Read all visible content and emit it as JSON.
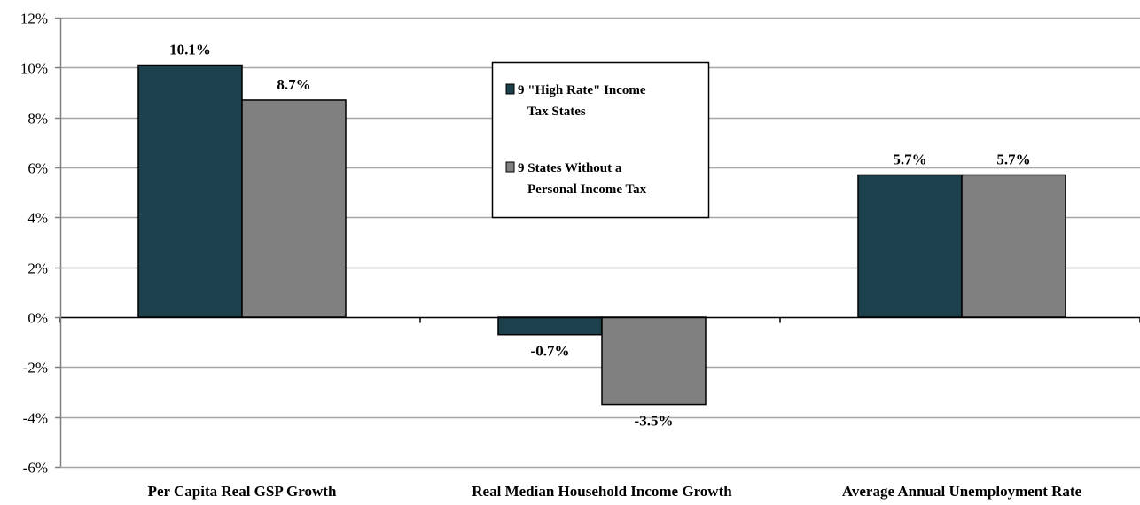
{
  "chart_data": {
    "type": "bar",
    "categories": [
      "Per Capita Real GSP Growth",
      "Real Median Household Income Growth",
      "Average Annual Unemployment Rate"
    ],
    "series": [
      {
        "name": "9 \"High Rate\" Income Tax States",
        "legend_lines": [
          "9 \"High Rate\" Income",
          "Tax States"
        ],
        "values": [
          10.1,
          -0.7,
          5.7
        ],
        "labels": [
          "10.1%",
          "-0.7%",
          "5.7%"
        ],
        "color": "#1c414d"
      },
      {
        "name": "9 States Without a Personal Income Tax",
        "legend_lines": [
          "9 States Without a",
          "Personal Income Tax"
        ],
        "values": [
          8.7,
          -3.5,
          5.7
        ],
        "labels": [
          "8.7%",
          "-3.5%",
          "5.7%"
        ],
        "color": "#808080"
      }
    ],
    "ylim": [
      -6,
      12
    ],
    "yticks": [
      -6,
      -4,
      -2,
      0,
      2,
      4,
      6,
      8,
      10,
      12
    ],
    "ytick_labels": [
      "-6%",
      "-4%",
      "-2%",
      "0%",
      "2%",
      "4%",
      "6%",
      "8%",
      "10%",
      "12%"
    ],
    "grid": true,
    "legend_position": "top-center",
    "title": "",
    "xlabel": "",
    "ylabel": ""
  }
}
